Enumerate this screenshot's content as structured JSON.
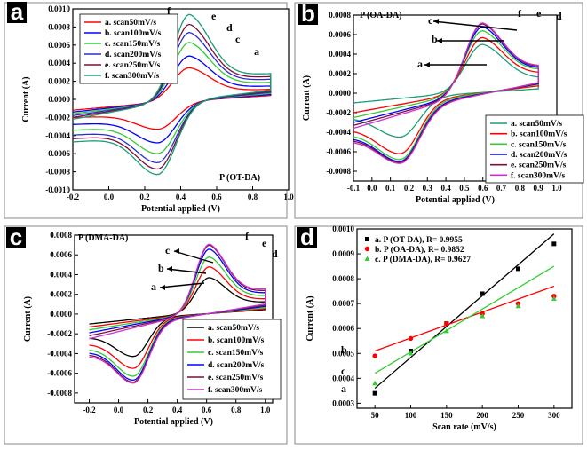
{
  "chart_data": [
    {
      "type": "line",
      "panel_label": "a",
      "title": "P (OT-DA)",
      "xlabel": "Potential applied (V)",
      "ylabel": "Current (A)",
      "xlim": [
        -0.2,
        1.0
      ],
      "ylim": [
        -0.001,
        0.001
      ],
      "xticks": [
        "-0.2",
        "0.0",
        "0.2",
        "0.4",
        "0.6",
        "0.8",
        "1.0"
      ],
      "yticks": [
        "-0.0010",
        "-0.0008",
        "-0.0006",
        "-0.0004",
        "-0.0002",
        "0.0000",
        "0.0002",
        "0.0004",
        "0.0006",
        "0.0008",
        "0.0010"
      ],
      "legend": [
        "a. scan50mV/s",
        "b. scan100mV/s",
        "c. scan150mV/s",
        "d. scan200mV/s",
        "e. scan250mV/s",
        "f. scan300mV/s"
      ],
      "colors": [
        "#ff0000",
        "#0000ff",
        "#33cc33",
        "#2b2bd6",
        "#7a0f3a",
        "#1a9e77"
      ],
      "annotations": [
        "a",
        "c",
        "d",
        "e",
        "f"
      ],
      "cv": {
        "x_start": -0.2,
        "x_end": 0.9,
        "x_ox": 0.45,
        "x_red": 0.27,
        "ipa": [
          0.00035,
          0.00048,
          0.00063,
          0.00074,
          0.00083,
          0.00094
        ],
        "ipc": [
          -0.00033,
          -0.00048,
          -0.0006,
          -0.0007,
          -0.00077,
          -0.00083
        ],
        "base_lo": [
          -0.00012,
          -0.00014,
          -0.00016,
          -0.00018,
          -0.0002,
          -0.00022
        ],
        "base_hi": [
          0.00014,
          0.00018,
          0.00022,
          0.00026,
          0.0003,
          0.00034
        ]
      }
    },
    {
      "type": "line",
      "panel_label": "b",
      "title": "P (OA-DA)",
      "xlabel": "Potential applied (V)",
      "ylabel": "Current (A)",
      "xlim": [
        -0.1,
        1.0
      ],
      "ylim": [
        -0.0009,
        0.0008
      ],
      "xticks": [
        "-0.1",
        "0.0",
        "0.1",
        "0.2",
        "0.3",
        "0.4",
        "0.5",
        "0.6",
        "0.7",
        "0.8",
        "0.9",
        "1.0"
      ],
      "yticks": [
        "-0.0008",
        "-0.0006",
        "-0.0004",
        "-0.0002",
        "0.0000",
        "0.0002",
        "0.0004",
        "0.0006",
        "0.0008"
      ],
      "legend": [
        "a. scan50mV/s",
        "b. scan100mV/s",
        "c. scan150mV/s",
        "d. scan200mV/s",
        "e. scan250mV/s",
        "f. scan300mV/s"
      ],
      "colors": [
        "#1a9e77",
        "#ff0000",
        "#33cc33",
        "#0000ff",
        "#7a0f3a",
        "#cc33cc"
      ],
      "annotations": [
        "a",
        "b",
        "c",
        "f",
        "e",
        "d"
      ],
      "cv": {
        "x_start": -0.1,
        "x_end": 0.9,
        "x_ox": 0.6,
        "x_red": 0.15,
        "ipa": [
          0.0005,
          0.00057,
          0.00064,
          0.00068,
          0.00071,
          0.00072
        ],
        "ipc": [
          -0.00045,
          -0.00062,
          -0.00068,
          -0.0007,
          -0.00071,
          -0.00072
        ],
        "base_lo": [
          -0.0001,
          -0.0002,
          -0.00025,
          -0.0003,
          -0.00033,
          -0.00036
        ],
        "base_hi": [
          0.00015,
          0.00025,
          0.0003,
          0.00032,
          0.00034,
          0.00036
        ]
      }
    },
    {
      "type": "line",
      "panel_label": "c",
      "title": "P (DMA-DA)",
      "xlabel": "Potential applied (V)",
      "ylabel": "Current (A)",
      "xlim": [
        -0.3,
        1.05
      ],
      "ylim": [
        -0.0009,
        0.0008
      ],
      "xticks": [
        "-0.2",
        "0.0",
        "0.2",
        "0.4",
        "0.6",
        "0.8",
        "1.0"
      ],
      "yticks": [
        "-0.0008",
        "-0.0006",
        "-0.0004",
        "-0.0002",
        "0.0000",
        "0.0002",
        "0.0004",
        "0.0006",
        "0.0008"
      ],
      "legend": [
        "a. scan50mV/s",
        "b. scan100mV/s",
        "c. scan150mV/s",
        "d. scan200mV/s",
        "e. scan250mV/s",
        "f. scan300mV/s"
      ],
      "colors": [
        "#000000",
        "#ff0000",
        "#33cc33",
        "#0000ff",
        "#7a0f3a",
        "#cc33cc"
      ],
      "annotations": [
        "a",
        "b",
        "c",
        "f",
        "e",
        "d"
      ],
      "cv": {
        "x_start": -0.2,
        "x_end": 1.0,
        "x_ox": 0.62,
        "x_red": 0.1,
        "ipa": [
          0.00037,
          0.00048,
          0.00058,
          0.00066,
          0.0007,
          0.00071
        ],
        "ipc": [
          -0.00043,
          -0.00055,
          -0.00063,
          -0.00067,
          -0.00069,
          -0.0007
        ],
        "base_lo": [
          -0.0001,
          -0.00013,
          -0.00016,
          -0.00019,
          -0.00022,
          -0.00025
        ],
        "base_hi": [
          0.00015,
          0.00018,
          0.00022,
          0.00026,
          0.0003,
          0.00034
        ]
      }
    },
    {
      "type": "scatter",
      "panel_label": "d",
      "xlabel": "Scan rate (mV/s)",
      "ylabel": "Current (A)",
      "xlim": [
        25,
        325
      ],
      "ylim": [
        0.00028,
        0.001
      ],
      "xticks": [
        "50",
        "100",
        "150",
        "200",
        "250",
        "300"
      ],
      "yticks": [
        "0.0003",
        "0.0004",
        "0.0005",
        "0.0006",
        "0.0007",
        "0.0008",
        "0.0009",
        "0.0010"
      ],
      "x": [
        50,
        100,
        150,
        200,
        250,
        300
      ],
      "series": [
        {
          "name": "a. P (OT-DA),  R= 0.9955",
          "label": "a",
          "color": "#000000",
          "marker": "square",
          "values": [
            0.00034,
            0.00051,
            0.00062,
            0.00074,
            0.00084,
            0.00094
          ],
          "fit": [
            0.00036,
            0.00098
          ]
        },
        {
          "name": "b. P (OA-DA),  R= 0.9852",
          "label": "b",
          "color": "#ff0000",
          "marker": "circle",
          "values": [
            0.00049,
            0.00056,
            0.00062,
            0.00066,
            0.0007,
            0.00073
          ],
          "fit": [
            0.00051,
            0.00077
          ]
        },
        {
          "name": "c. P (DMA-DA), R= 0.9627",
          "label": "c",
          "color": "#33cc33",
          "marker": "triangle",
          "values": [
            0.00038,
            0.0005,
            0.00059,
            0.00065,
            0.00069,
            0.00072
          ],
          "fit": [
            0.00042,
            0.00085
          ]
        }
      ]
    }
  ]
}
